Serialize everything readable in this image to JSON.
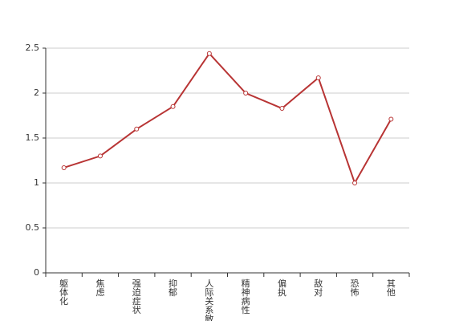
{
  "chart_data": {
    "type": "line",
    "categories": [
      "躯体化",
      "焦虑",
      "强迫症状",
      "抑郁",
      "人际关系敏感",
      "精神病性",
      "偏执",
      "敌对",
      "恐怖",
      "其他"
    ],
    "values": [
      1.17,
      1.3,
      1.6,
      1.85,
      2.44,
      2.0,
      1.83,
      2.17,
      1.0,
      1.71
    ],
    "color": "#b83434",
    "ylim": [
      0,
      2.5
    ],
    "yticks": [
      0,
      0.5,
      1,
      1.5,
      2,
      2.5
    ],
    "grid": true
  }
}
